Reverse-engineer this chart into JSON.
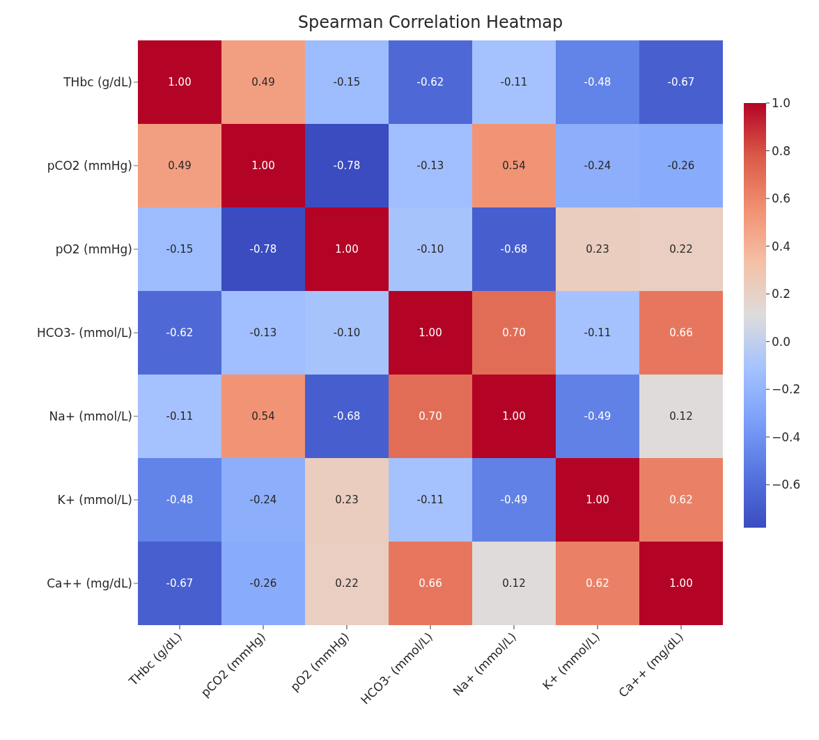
{
  "chart_data": {
    "type": "heatmap",
    "title": "Spearman Correlation Heatmap",
    "categories": [
      "THbc (g/dL)",
      "pCO2 (mmHg)",
      "pO2 (mmHg)",
      "HCO3- (mmol/L)",
      "Na+ (mmol/L)",
      "K+ (mmol/L)",
      "Ca++ (mg/dL)"
    ],
    "y_categories": [
      "THbc (g/dL)",
      "pCO2 (mmHg)",
      "pO2 (mmHg)",
      "HCO3- (mmol/L)",
      "Na+ (mmol/L)",
      "K+ (mmol/L)",
      "Ca++ (mg/dL)"
    ],
    "cells": [
      [
        1.0,
        0.49,
        -0.15,
        -0.62,
        -0.11,
        -0.48,
        -0.67
      ],
      [
        0.49,
        1.0,
        -0.78,
        -0.13,
        0.54,
        -0.24,
        -0.26
      ],
      [
        -0.15,
        -0.78,
        1.0,
        -0.1,
        -0.68,
        0.23,
        0.22
      ],
      [
        -0.62,
        -0.13,
        -0.1,
        1.0,
        0.7,
        -0.11,
        0.66
      ],
      [
        -0.11,
        0.54,
        -0.68,
        0.7,
        1.0,
        -0.49,
        0.12
      ],
      [
        -0.48,
        -0.24,
        0.23,
        -0.11,
        -0.49,
        1.0,
        0.62
      ],
      [
        -0.67,
        -0.26,
        0.22,
        0.66,
        0.12,
        0.62,
        1.0
      ]
    ],
    "cell_labels": [
      [
        "1.00",
        "0.49",
        "-0.15",
        "-0.62",
        "-0.11",
        "-0.48",
        "-0.67"
      ],
      [
        "0.49",
        "1.00",
        "-0.78",
        "-0.13",
        "0.54",
        "-0.24",
        "-0.26"
      ],
      [
        "-0.15",
        "-0.78",
        "1.00",
        "-0.10",
        "-0.68",
        "0.23",
        "0.22"
      ],
      [
        "-0.62",
        "-0.13",
        "-0.10",
        "1.00",
        "0.70",
        "-0.11",
        "0.66"
      ],
      [
        "-0.11",
        "0.54",
        "-0.68",
        "0.70",
        "1.00",
        "-0.49",
        "0.12"
      ],
      [
        "-0.48",
        "-0.24",
        "0.23",
        "-0.11",
        "-0.49",
        "1.00",
        "0.62"
      ],
      [
        "-0.67",
        "-0.26",
        "0.22",
        "0.66",
        "0.12",
        "0.62",
        "1.00"
      ]
    ],
    "clim": [
      -0.78,
      1.0
    ],
    "cticks": [
      {
        "value": -0.6,
        "label": "−0.6"
      },
      {
        "value": -0.4,
        "label": "−0.4"
      },
      {
        "value": -0.2,
        "label": "−0.2"
      },
      {
        "value": 0.0,
        "label": "0.0"
      },
      {
        "value": 0.2,
        "label": "0.2"
      },
      {
        "value": 0.4,
        "label": "0.4"
      },
      {
        "value": 0.6,
        "label": "0.6"
      },
      {
        "value": 0.8,
        "label": "0.8"
      },
      {
        "value": 1.0,
        "label": "1.0"
      }
    ]
  }
}
